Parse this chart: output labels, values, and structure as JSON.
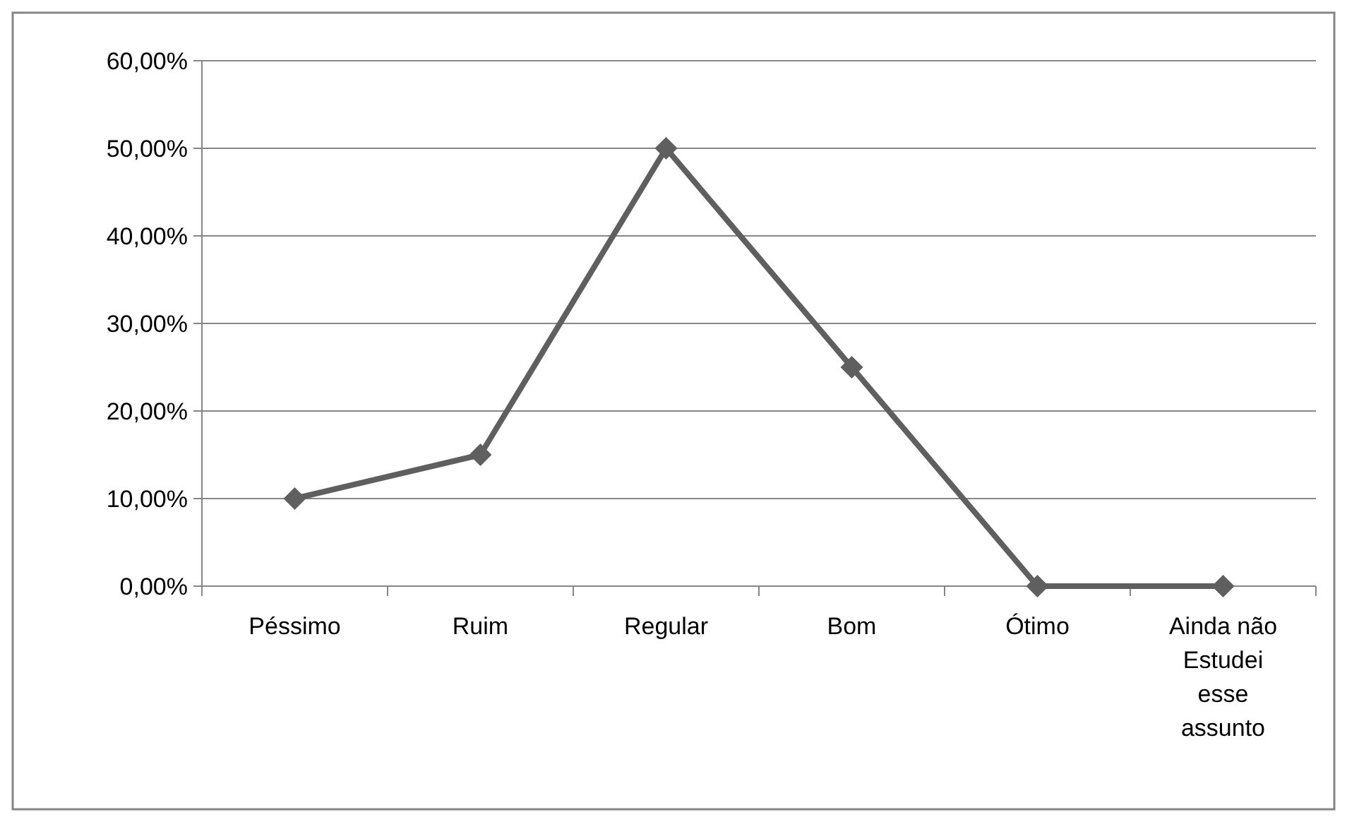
{
  "chart_data": {
    "type": "line",
    "categories": [
      "Péssimo",
      "Ruim",
      "Regular",
      "Bom",
      "Ótimo",
      "Ainda não Estudei esse assunto"
    ],
    "series": [
      {
        "color": "#5f5f5f",
        "values": [
          10,
          15,
          50,
          25,
          0,
          0
        ]
      }
    ],
    "ylim": [
      0,
      60
    ],
    "yticks": [
      {
        "value": 0,
        "label": "0,00%"
      },
      {
        "value": 10,
        "label": "10,00%"
      },
      {
        "value": 20,
        "label": "20,00%"
      },
      {
        "value": 30,
        "label": "30,00%"
      },
      {
        "value": 40,
        "label": "40,00%"
      },
      {
        "value": 50,
        "label": "50,00%"
      },
      {
        "value": 60,
        "label": "60,00%"
      }
    ],
    "grid": "y",
    "marker": "diamond",
    "line_style": "solid"
  }
}
